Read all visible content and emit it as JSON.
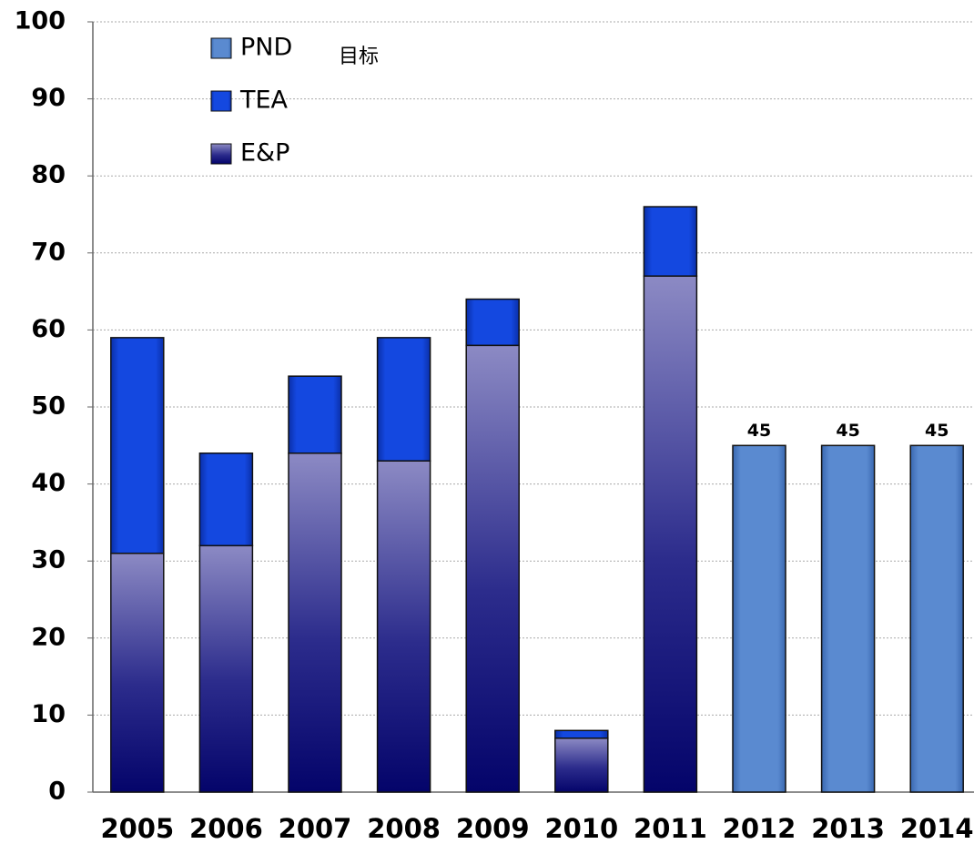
{
  "chart_data": {
    "type": "stacked_bar",
    "annotation": "目标",
    "categories": [
      "2005",
      "2006",
      "2007",
      "2008",
      "2009",
      "2010",
      "2011",
      "2012",
      "2013",
      "2014"
    ],
    "series": [
      {
        "name": "E&P",
        "color": "#1a1a7a",
        "values": [
          31,
          32,
          44,
          43,
          58,
          7,
          67,
          null,
          null,
          null
        ]
      },
      {
        "name": "TEA",
        "color": "#1040d8",
        "values": [
          28,
          12,
          10,
          16,
          6,
          1,
          9,
          null,
          null,
          null
        ]
      },
      {
        "name": "PND",
        "color": "#5a8ad0",
        "values": [
          null,
          null,
          null,
          null,
          null,
          null,
          null,
          45,
          45,
          45
        ]
      }
    ],
    "data_labels_series": "PND",
    "ylim": [
      0,
      100
    ],
    "yticks": [
      0,
      10,
      20,
      30,
      40,
      50,
      60,
      70,
      80,
      90,
      100
    ],
    "grid": true
  }
}
